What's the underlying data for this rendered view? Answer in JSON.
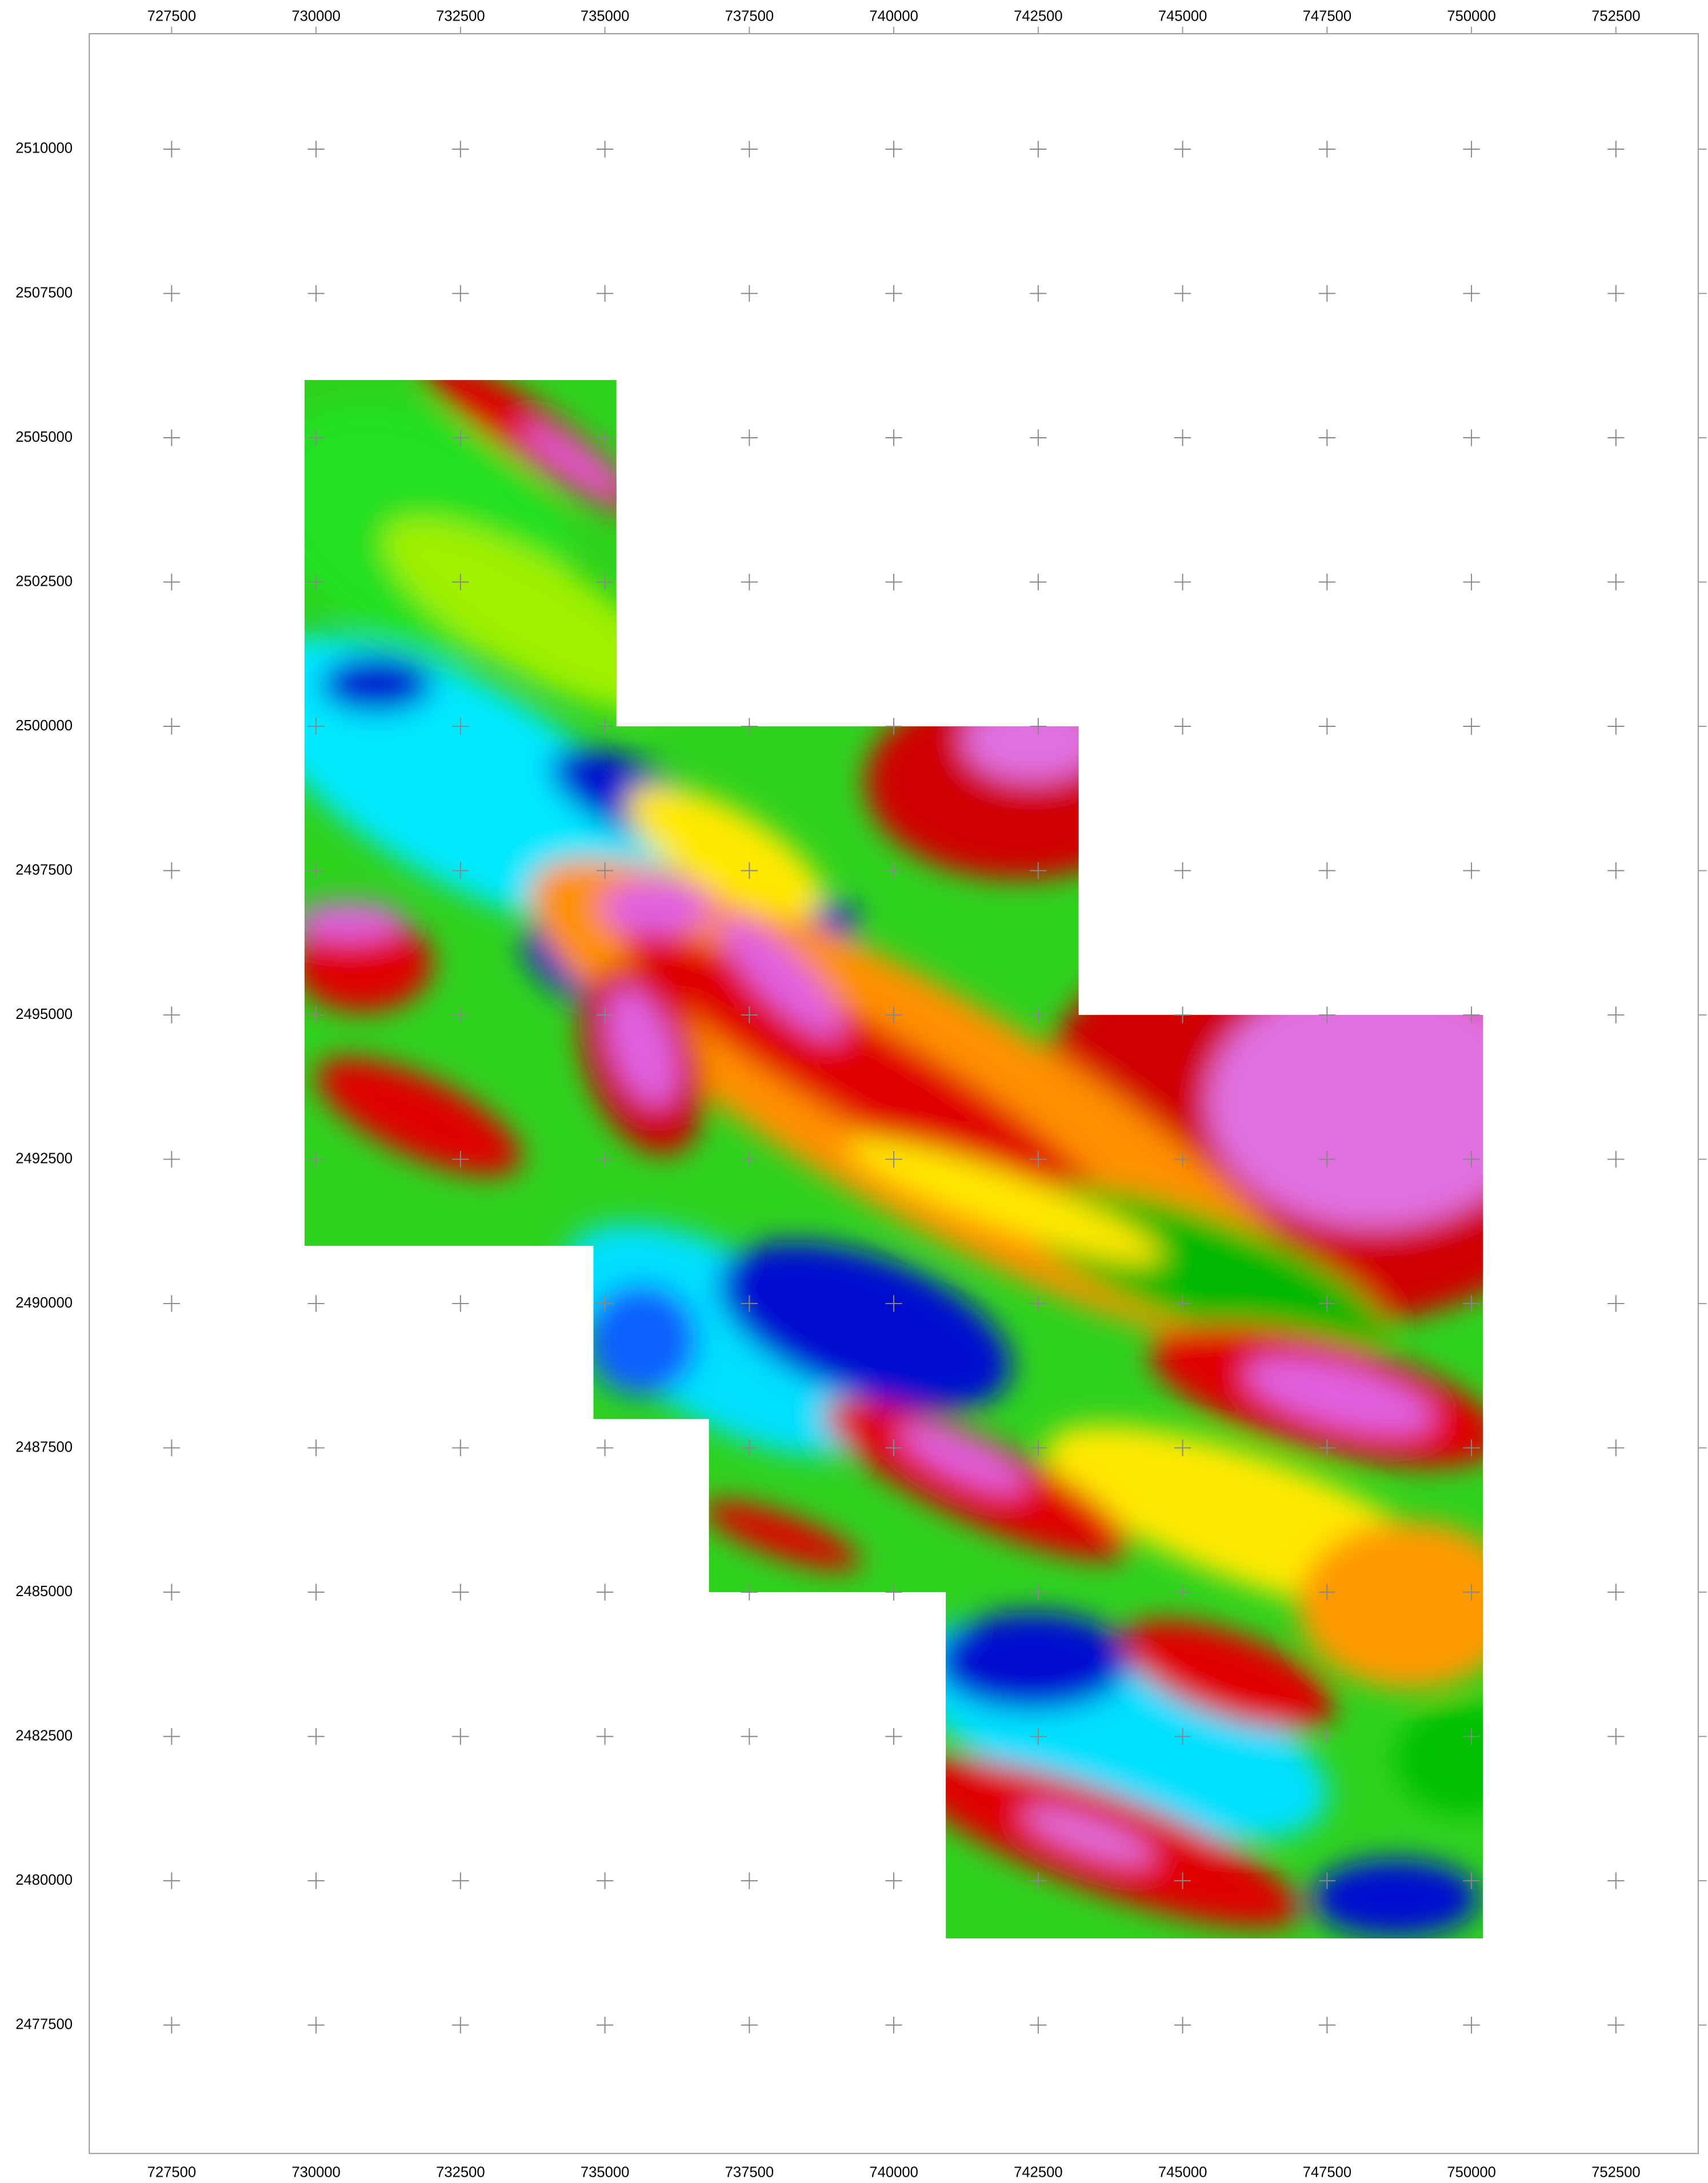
{
  "map": {
    "xlim": [
      726075,
      753925
    ],
    "ylim": [
      2475275,
      2512000
    ],
    "xticks": [
      727500,
      730000,
      732500,
      735000,
      737500,
      740000,
      742500,
      745000,
      747500,
      750000,
      752500
    ],
    "yticks": [
      2510000,
      2507500,
      2505000,
      2502500,
      2500000,
      2497500,
      2495000,
      2492500,
      2490000,
      2487500,
      2485000,
      2482500,
      2480000,
      2477500
    ],
    "survey_area": [
      [
        729800,
        2506000
      ],
      [
        735200,
        2506000
      ],
      [
        735200,
        2500000
      ],
      [
        743200,
        2500000
      ],
      [
        743200,
        2495000
      ],
      [
        750200,
        2495000
      ],
      [
        750200,
        2479000
      ],
      [
        740900,
        2479000
      ],
      [
        740900,
        2485000
      ],
      [
        736800,
        2485000
      ],
      [
        736800,
        2488000
      ],
      [
        734800,
        2488000
      ],
      [
        734800,
        2491000
      ],
      [
        729800,
        2491000
      ]
    ]
  }
}
